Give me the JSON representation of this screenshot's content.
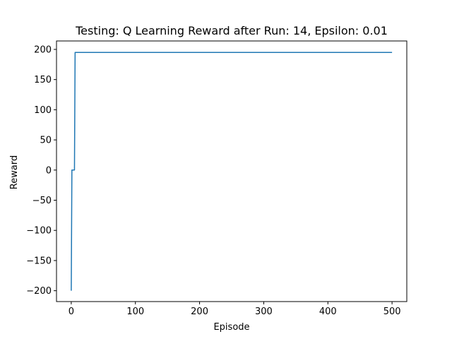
{
  "chart_data": {
    "type": "line",
    "title": "Testing: Q Learning Reward after Run: 14, Epsilon: 0.01",
    "xlabel": "Episode",
    "ylabel": "Reward",
    "xlim": [
      -23,
      523
    ],
    "ylim": [
      -218,
      214
    ],
    "xticks": [
      0,
      100,
      200,
      300,
      400,
      500
    ],
    "xtick_labels": [
      "0",
      "100",
      "200",
      "300",
      "400",
      "500"
    ],
    "yticks": [
      200,
      150,
      100,
      50,
      0,
      -50,
      -100,
      -150,
      -200
    ],
    "ytick_labels": [
      "200",
      "150",
      "100",
      "50",
      "0",
      "−50",
      "−100",
      "−150",
      "−200"
    ],
    "grid": false,
    "series": [
      {
        "color": "#1f77b4",
        "x": [
          0,
          1,
          2,
          3,
          4,
          5,
          6,
          500
        ],
        "y": [
          -200,
          0,
          0,
          0,
          0,
          0,
          195,
          195
        ]
      }
    ]
  }
}
